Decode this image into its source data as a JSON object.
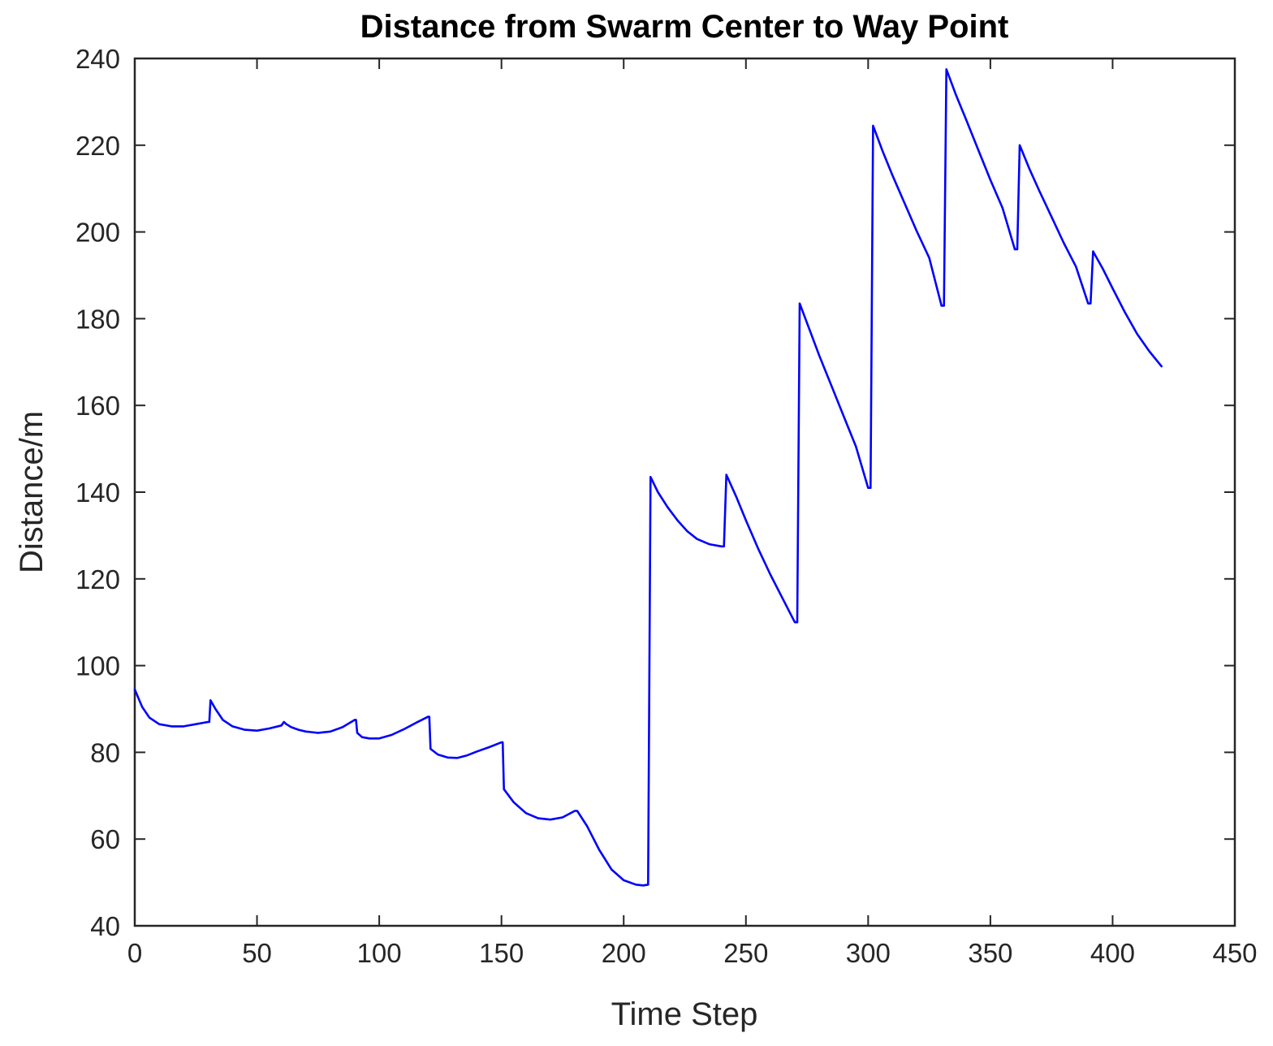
{
  "chart_data": {
    "type": "line",
    "title": "Distance from Swarm Center to Way Point",
    "xlabel": "Time Step",
    "ylabel": "Distance/m",
    "xlim": [
      0,
      450
    ],
    "ylim": [
      40,
      240
    ],
    "xticks": [
      0,
      50,
      100,
      150,
      200,
      250,
      300,
      350,
      400,
      450
    ],
    "yticks": [
      40,
      60,
      80,
      100,
      120,
      140,
      160,
      180,
      200,
      220,
      240
    ],
    "grid": false,
    "legend": "none",
    "series": [
      {
        "color": "#0000ff",
        "x": [
          0,
          3,
          6,
          10,
          15,
          20,
          25,
          30,
          30.5,
          31,
          33,
          36,
          40,
          45,
          50,
          55,
          60,
          61,
          62,
          64,
          67,
          70,
          75,
          80,
          85,
          90,
          90.5,
          91,
          93,
          96,
          100,
          105,
          110,
          115,
          120,
          120.5,
          121,
          124,
          128,
          132,
          136,
          140,
          145,
          150,
          150.5,
          151,
          155,
          160,
          165,
          170,
          175,
          180,
          181,
          185,
          190,
          195,
          200,
          205,
          208,
          210,
          211,
          214,
          218,
          222,
          226,
          230,
          235,
          240,
          241,
          242,
          246,
          250,
          255,
          260,
          265,
          270,
          271,
          272,
          276,
          280,
          285,
          290,
          295,
          300,
          301,
          302,
          306,
          310,
          315,
          320,
          325,
          330,
          331,
          332,
          336,
          340,
          345,
          350,
          355,
          360,
          361,
          362,
          366,
          370,
          375,
          380,
          385,
          390,
          391,
          392,
          396,
          400,
          405,
          410,
          415,
          420
        ],
        "y": [
          94.5,
          90.5,
          88,
          86.5,
          86,
          86,
          86.5,
          87,
          87,
          92,
          90,
          87.5,
          86,
          85.2,
          85,
          85.5,
          86.2,
          87,
          86.5,
          85.8,
          85.2,
          84.8,
          84.5,
          84.8,
          85.8,
          87.5,
          87.5,
          84.5,
          83.5,
          83.2,
          83.2,
          84,
          85.3,
          86.8,
          88.2,
          88.2,
          80.8,
          79.5,
          78.8,
          78.7,
          79.3,
          80.2,
          81.2,
          82.3,
          82.3,
          71.5,
          68.5,
          66,
          64.8,
          64.5,
          65,
          66.5,
          66.5,
          63,
          57.5,
          53,
          50.5,
          49.5,
          49.3,
          49.5,
          143.5,
          140,
          136.5,
          133.5,
          131,
          129.2,
          128,
          127.5,
          127.5,
          144,
          139,
          133.5,
          127,
          121,
          115.5,
          110,
          110,
          183.5,
          177.5,
          171.5,
          164.5,
          157.5,
          150.5,
          141,
          141,
          224.5,
          218.5,
          213,
          206.5,
          200,
          194,
          183,
          183,
          237.5,
          231.5,
          226,
          219,
          212,
          205.5,
          196,
          196,
          220,
          214.5,
          209.5,
          203.5,
          197.5,
          192,
          183.5,
          183.5,
          195.5,
          191.5,
          187,
          181.5,
          176.5,
          172.5,
          169
        ]
      }
    ]
  }
}
